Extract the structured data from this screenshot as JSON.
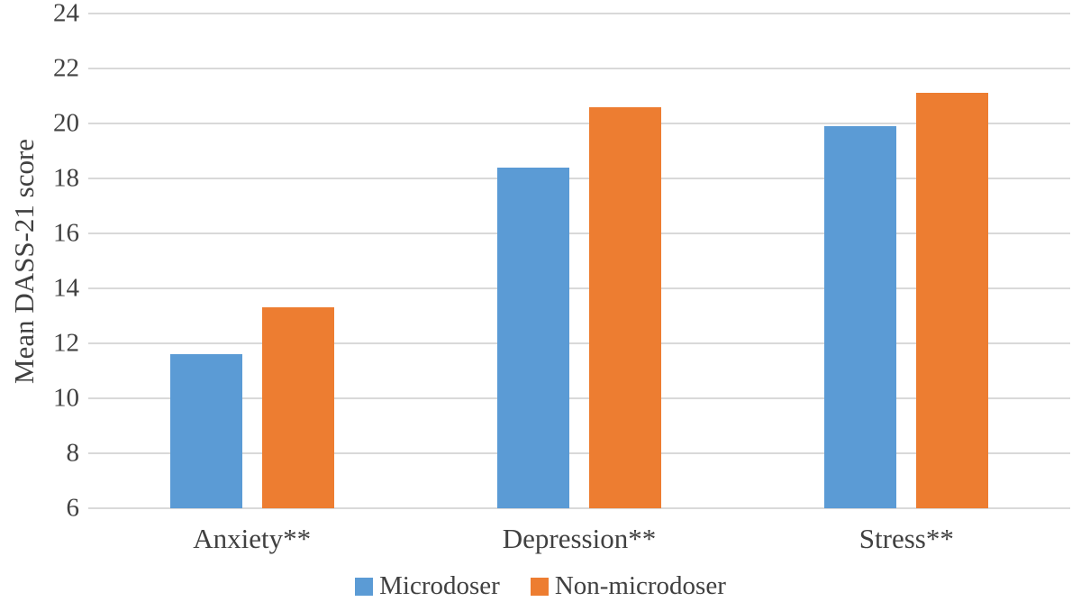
{
  "chart_data": {
    "type": "bar",
    "categories": [
      "Anxiety**",
      "Depression**",
      "Stress**"
    ],
    "series": [
      {
        "name": "Microdoser",
        "color": "#5B9BD5",
        "values": [
          11.6,
          18.4,
          19.9
        ]
      },
      {
        "name": "Non-microdoser",
        "color": "#ED7D31",
        "values": [
          13.3,
          20.6,
          21.1
        ]
      }
    ],
    "xlabel": "",
    "ylabel": "Mean DASS-21 score",
    "ylim": [
      6,
      24
    ],
    "ytick_step": 2,
    "grid": true,
    "legend_position": "bottom",
    "gridline_color": "#D9D9D9",
    "text_color": "#404040",
    "background_color": "#FFFFFF"
  }
}
